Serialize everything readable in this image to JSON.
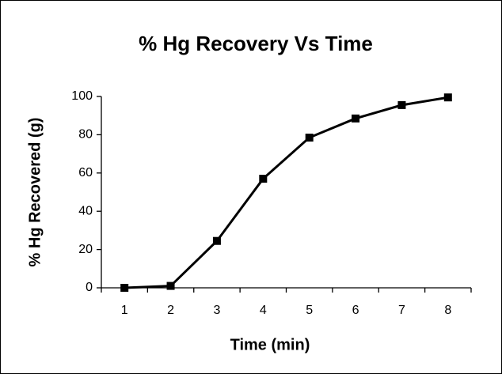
{
  "chart_data": {
    "type": "line",
    "title": "% Hg Recovery Vs Time",
    "x_label": "Time (min)",
    "y_label": "% Hg Recovered (g)",
    "categories": [
      "1",
      "2",
      "3",
      "4",
      "5",
      "6",
      "7",
      "8"
    ],
    "series": [
      {
        "name": "% Hg Recovered",
        "color": "#000000",
        "values": [
          0,
          1,
          24.5,
          57,
          78.5,
          88.5,
          95.5,
          99.5
        ]
      }
    ],
    "ylim": [
      0,
      100
    ],
    "yticks": [
      0,
      20,
      40,
      60,
      80,
      100
    ],
    "grid": false,
    "legend": false
  }
}
